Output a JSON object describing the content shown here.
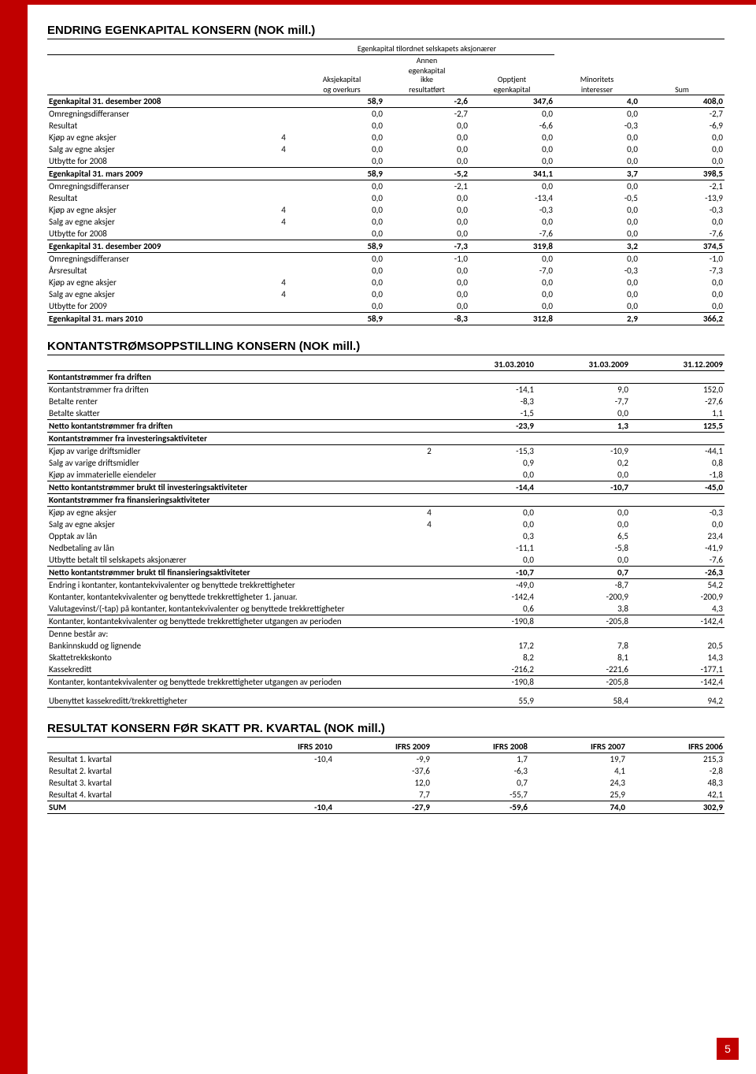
{
  "page_number": "5",
  "accent_color": "#c00000",
  "equity": {
    "title": "ENDRING EGENKAPITAL KONSERN (NOK mill.)",
    "group_header": "Egenkapital tilordnet selskapets aksjonærer",
    "columns": {
      "c1a": "Aksjekapital",
      "c1b": "og overkurs",
      "c2a": "Annen",
      "c2b": "egenkapital",
      "c2c": "ikke",
      "c2d": "resultatført",
      "c3a": "Opptjent",
      "c3b": "egenkapital",
      "c4a": "Minoritets",
      "c4b": "interesser",
      "c5": "Sum"
    },
    "rows": [
      {
        "label": "Egenkapital 31. desember 2008",
        "note": "",
        "v": [
          "58,9",
          "-2,6",
          "347,6",
          "4,0",
          "408,0"
        ],
        "sum": true
      },
      {
        "label": "Omregningsdifferanser",
        "note": "",
        "v": [
          "0,0",
          "-2,7",
          "0,0",
          "0,0",
          "-2,7"
        ]
      },
      {
        "label": "Resultat",
        "note": "",
        "v": [
          "0,0",
          "0,0",
          "-6,6",
          "-0,3",
          "-6,9"
        ]
      },
      {
        "label": "Kjøp av egne aksjer",
        "note": "4",
        "v": [
          "0,0",
          "0,0",
          "0,0",
          "0,0",
          "0,0"
        ]
      },
      {
        "label": "Salg av egne aksjer",
        "note": "4",
        "v": [
          "0,0",
          "0,0",
          "0,0",
          "0,0",
          "0,0"
        ]
      },
      {
        "label": "Utbytte for 2008",
        "note": "",
        "v": [
          "0,0",
          "0,0",
          "0,0",
          "0,0",
          "0,0"
        ]
      },
      {
        "label": "Egenkapital 31. mars 2009",
        "note": "",
        "v": [
          "58,9",
          "-5,2",
          "341,1",
          "3,7",
          "398,5"
        ],
        "sum": true
      },
      {
        "label": "Omregningsdifferanser",
        "note": "",
        "v": [
          "0,0",
          "-2,1",
          "0,0",
          "0,0",
          "-2,1"
        ]
      },
      {
        "label": "Resultat",
        "note": "",
        "v": [
          "0,0",
          "0,0",
          "-13,4",
          "-0,5",
          "-13,9"
        ]
      },
      {
        "label": "Kjøp av egne aksjer",
        "note": "4",
        "v": [
          "0,0",
          "0,0",
          "-0,3",
          "0,0",
          "-0,3"
        ]
      },
      {
        "label": "Salg av egne aksjer",
        "note": "4",
        "v": [
          "0,0",
          "0,0",
          "0,0",
          "0,0",
          "0,0"
        ]
      },
      {
        "label": "Utbytte for 2008",
        "note": "",
        "v": [
          "0,0",
          "0,0",
          "-7,6",
          "0,0",
          "-7,6"
        ]
      },
      {
        "label": "Egenkapital 31. desember 2009",
        "note": "",
        "v": [
          "58,9",
          "-7,3",
          "319,8",
          "3,2",
          "374,5"
        ],
        "sum": true
      },
      {
        "label": "Omregningsdifferanser",
        "note": "",
        "v": [
          "0,0",
          "-1,0",
          "0,0",
          "0,0",
          "-1,0"
        ]
      },
      {
        "label": "Årsresultat",
        "note": "",
        "v": [
          "0,0",
          "0,0",
          "-7,0",
          "-0,3",
          "-7,3"
        ]
      },
      {
        "label": "Kjøp av egne aksjer",
        "note": "4",
        "v": [
          "0,0",
          "0,0",
          "0,0",
          "0,0",
          "0,0"
        ]
      },
      {
        "label": "Salg av egne aksjer",
        "note": "4",
        "v": [
          "0,0",
          "0,0",
          "0,0",
          "0,0",
          "0,0"
        ]
      },
      {
        "label": "Utbytte for 2009",
        "note": "",
        "v": [
          "0,0",
          "0,0",
          "0,0",
          "0,0",
          "0,0"
        ]
      },
      {
        "label": "Egenkapital 31. mars 2010",
        "note": "",
        "v": [
          "58,9",
          "-8,3",
          "312,8",
          "2,9",
          "366,2"
        ],
        "sum": true
      }
    ]
  },
  "cashflow": {
    "title": "KONTANTSTRØMSOPPSTILLING KONSERN (NOK mill.)",
    "columns": [
      "31.03.2010",
      "31.03.2009",
      "31.12.2009"
    ],
    "rows": [
      {
        "label": "Kontantstrømmer fra driften",
        "header": true
      },
      {
        "label": "Kontantstrømmer fra driften",
        "v": [
          "-14,1",
          "9,0",
          "152,0"
        ]
      },
      {
        "label": "Betalte renter",
        "v": [
          "-8,3",
          "-7,7",
          "-27,6"
        ]
      },
      {
        "label": "Betalte skatter",
        "v": [
          "-1,5",
          "0,0",
          "1,1"
        ]
      },
      {
        "label": "Netto kontantstrømmer fra driften",
        "v": [
          "-23,9",
          "1,3",
          "125,5"
        ],
        "sum": true
      },
      {
        "label": "Kontantstrømmer fra investeringsaktiviteter",
        "header": true
      },
      {
        "label": "Kjøp av varige driftsmidler",
        "note": "2",
        "v": [
          "-15,3",
          "-10,9",
          "-44,1"
        ]
      },
      {
        "label": "Salg av varige driftsmidler",
        "v": [
          "0,9",
          "0,2",
          "0,8"
        ]
      },
      {
        "label": "Kjøp av immaterielle eiendeler",
        "v": [
          "0,0",
          "0,0",
          "-1,8"
        ]
      },
      {
        "label": "Netto kontantstrømmer brukt til investeringsaktiviteter",
        "v": [
          "-14,4",
          "-10,7",
          "-45,0"
        ],
        "sum": true
      },
      {
        "label": "Kontantstrømmer fra finansieringsaktiviteter",
        "header": true
      },
      {
        "label": "Kjøp av egne aksjer",
        "note": "4",
        "v": [
          "0,0",
          "0,0",
          "-0,3"
        ]
      },
      {
        "label": "Salg av egne aksjer",
        "note": "4",
        "v": [
          "0,0",
          "0,0",
          "0,0"
        ]
      },
      {
        "label": "Opptak av lån",
        "v": [
          "0,3",
          "6,5",
          "23,4"
        ]
      },
      {
        "label": "Nedbetaling av lån",
        "v": [
          "-11,1",
          "-5,8",
          "-41,9"
        ]
      },
      {
        "label": "Utbytte betalt til selskapets aksjonærer",
        "v": [
          "0,0",
          "0,0",
          "-7,6"
        ]
      },
      {
        "label": "Netto kontantstrømmer brukt til finansieringsaktiviteter",
        "v": [
          "-10,7",
          "0,7",
          "-26,3"
        ],
        "sum": true
      },
      {
        "label": "Endring i kontanter, kontantekvivalenter og benyttede trekkrettigheter",
        "v": [
          "-49,0",
          "-8,7",
          "54,2"
        ]
      },
      {
        "label": "Kontanter, kontantekvivalenter og benyttede trekkrettigheter 1. januar.",
        "v": [
          "-142,4",
          "-200,9",
          "-200,9"
        ]
      },
      {
        "label": "Valutagevinst/(-tap) på kontanter, kontantekvivalenter og benyttede trekkrettigheter",
        "v": [
          "0,6",
          "3,8",
          "4,3"
        ],
        "bb": true
      },
      {
        "label": "Kontanter, kontantekvivalenter og benyttede trekkrettigheter utgangen av perioden",
        "v": [
          "-190,8",
          "-205,8",
          "-142,4"
        ],
        "bb": true
      },
      {
        "label": "Denne består av:"
      },
      {
        "label": "Bankinnskudd og lignende",
        "v": [
          "17,2",
          "7,8",
          "20,5"
        ]
      },
      {
        "label": "Skattetrekkskonto",
        "v": [
          "8,2",
          "8,1",
          "14,3"
        ]
      },
      {
        "label": "Kassekreditt",
        "v": [
          "-216,2",
          "-221,6",
          "-177,1"
        ],
        "bb": true
      },
      {
        "label": "Kontanter, kontantekvivalenter og benyttede trekkrettigheter utgangen av perioden",
        "v": [
          "-190,8",
          "-205,8",
          "-142,4"
        ],
        "bb": true
      },
      {
        "spacer": true
      },
      {
        "label": "Ubenyttet kassekreditt/trekkrettigheter",
        "v": [
          "55,9",
          "58,4",
          "94,2"
        ],
        "bb": true
      }
    ]
  },
  "quarterly": {
    "title": "RESULTAT KONSERN FØR SKATT PR. KVARTAL (NOK mill.)",
    "columns": [
      "IFRS 2010",
      "IFRS 2009",
      "IFRS 2008",
      "IFRS 2007",
      "IFRS 2006"
    ],
    "rows": [
      {
        "label": "Resultat 1. kvartal",
        "v": [
          "-10,4",
          "-9,9",
          "1,7",
          "19,7",
          "215,3"
        ]
      },
      {
        "label": "Resultat 2. kvartal",
        "v": [
          "",
          "-37,6",
          "-6,3",
          "4,1",
          "-2,8"
        ]
      },
      {
        "label": "Resultat 3. kvartal",
        "v": [
          "",
          "12,0",
          "0,7",
          "24,3",
          "48,3"
        ]
      },
      {
        "label": "Resultat 4. kvartal",
        "v": [
          "",
          "7,7",
          "-55,7",
          "25,9",
          "42,1"
        ]
      },
      {
        "label": "SUM",
        "v": [
          "-10,4",
          "-27,9",
          "-59,6",
          "74,0",
          "302,9"
        ],
        "sum": true
      }
    ]
  }
}
